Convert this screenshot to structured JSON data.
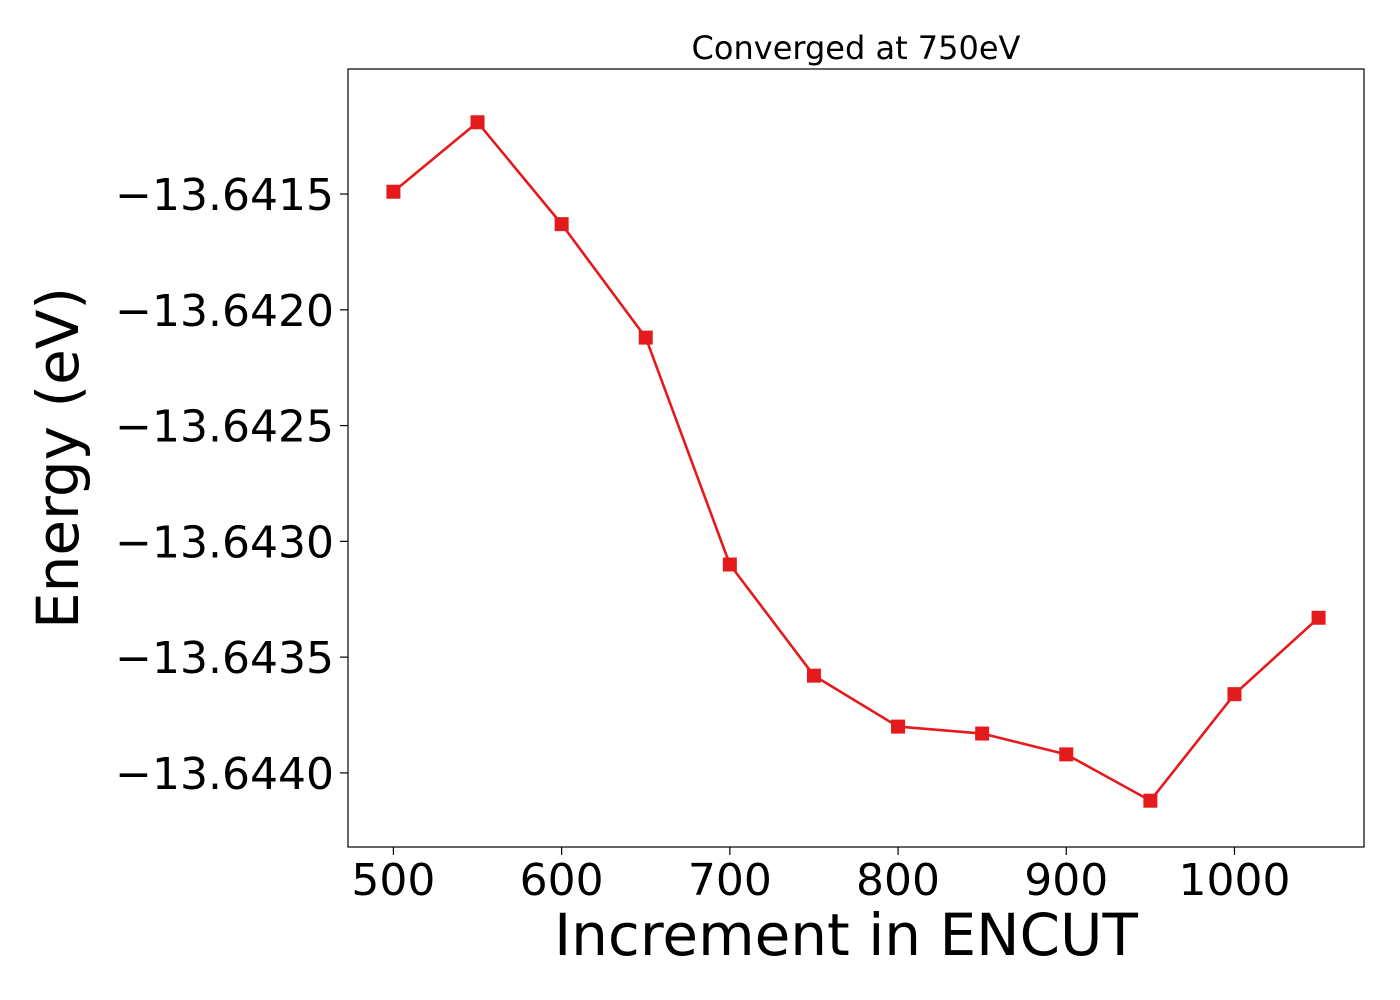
{
  "chart_data": {
    "type": "line",
    "title": "Converged at 750eV",
    "xlabel": "Increment in ENCUT",
    "ylabel": "Energy (eV)",
    "xlim": [
      473,
      1077
    ],
    "ylim": [
      -13.64432,
      -13.64096
    ],
    "xticks": [
      500,
      600,
      700,
      800,
      900,
      1000
    ],
    "xtick_labels": [
      "500",
      "600",
      "700",
      "800",
      "900",
      "1000"
    ],
    "yticks": [
      -13.6415,
      -13.642,
      -13.6425,
      -13.643,
      -13.6435,
      -13.644
    ],
    "ytick_labels": [
      "−13.6415",
      "−13.6420",
      "−13.6425",
      "−13.6430",
      "−13.6435",
      "−13.6440"
    ],
    "grid": false,
    "series": [
      {
        "color": "#e41a1c",
        "marker": "square",
        "x": [
          500,
          550,
          600,
          650,
          700,
          750,
          800,
          850,
          900,
          950,
          1000,
          1050
        ],
        "y": [
          -13.64149,
          -13.64119,
          -13.64163,
          -13.64212,
          -13.6431,
          -13.64358,
          -13.6438,
          -13.64383,
          -13.64392,
          -13.64412,
          -13.64366,
          -13.64333
        ]
      }
    ]
  }
}
